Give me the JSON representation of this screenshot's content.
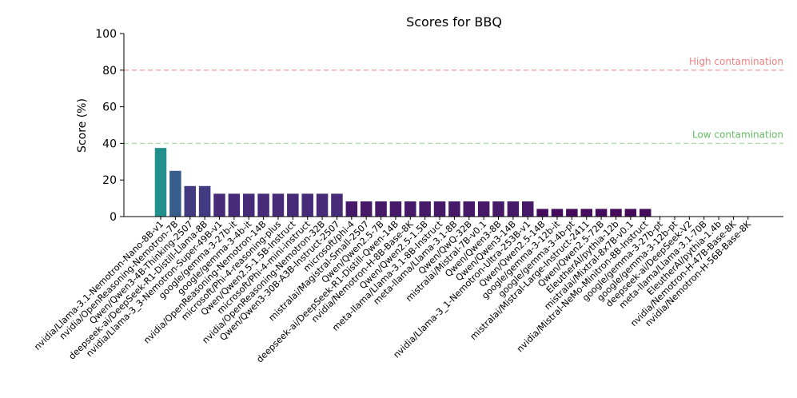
{
  "chart_data": {
    "type": "bar",
    "title": "Scores for BBQ",
    "xlabel": "",
    "ylabel": "Score (%)",
    "ylim": [
      0,
      100
    ],
    "yticks": [
      0,
      20,
      40,
      60,
      80,
      100
    ],
    "grid": false,
    "categories": [
      "nvidia/Llama-3.1-Nemotron-Nano-8B-v1",
      "nvidia/OpenReasoning-Nemotron-7B",
      "Qwen/Qwen3-4B-Thinking-2507",
      "deepseek-ai/DeepSeek-R1-Distill-Llama-8B",
      "nvidia/Llama-3_3-Nemotron-Super-49B-v1",
      "google/gemma-3-27b-it",
      "google/gemma-3-4b-it",
      "nvidia/OpenReasoning-Nemotron-14B",
      "microsoft/Phi-4-reasoning-plus",
      "Qwen/Qwen2.5-1.5B-Instruct",
      "microsoft/Phi-4-mini-instruct",
      "nvidia/OpenReasoning-Nemotron-32B",
      "Qwen/Qwen3-30B-A3B-Instruct-2507",
      "microsoft/phi-4",
      "mistralai/Magistral-Small-2507",
      "Qwen/Qwen2.5-7B",
      "deepseek-ai/DeepSeek-R1-Distill-Qwen-14B",
      "nvidia/Nemotron-H-8B-Base-8K",
      "Qwen/Qwen2.5-1.5B",
      "meta-llama/Llama-3.1-8B-Instruct",
      "meta-llama/Llama-3.1-8B",
      "Qwen/QwQ-32B",
      "mistralai/Mistral-7B-v0.1",
      "Qwen/Qwen3-8B",
      "Qwen/Qwen3-14B",
      "nvidia/Llama-3_1-Nemotron-Ultra-253B-v1",
      "Qwen/Qwen2.5-14B",
      "google/gemma-3-12b-it",
      "google/gemma-3-4b-pt",
      "mistralai/Mistral-Large-Instruct-2411",
      "Qwen/Qwen2.5-72B",
      "EleutherAI/pythia-12b",
      "mistralai/Mixtral-8x7B-v0.1",
      "nvidia/Mistral-NeMo-Minitron-8B-Instruct",
      "google/gemma-3-27b-pt",
      "google/gemma-3-12b-pt",
      "deepseek-ai/DeepSeek-V2",
      "meta-llama/Llama-3.1-70B",
      "EleutherAI/pythia-1.4b",
      "nvidia/Nemotron-H-47B-Base-8K",
      "nvidia/Nemotron-H-56B-Base-8K"
    ],
    "values": [
      37.5,
      25,
      16.7,
      16.7,
      12.5,
      12.5,
      12.5,
      12.5,
      12.5,
      12.5,
      12.5,
      12.5,
      12.5,
      8.3,
      8.3,
      8.3,
      8.3,
      8.3,
      8.3,
      8.3,
      8.3,
      8.3,
      8.3,
      8.3,
      8.3,
      8.3,
      4.2,
      4.2,
      4.2,
      4.2,
      4.2,
      4.2,
      4.2,
      4.2,
      0,
      0,
      0,
      0,
      0,
      0,
      0
    ],
    "thresholds": [
      {
        "label": "High contamination",
        "value": 80,
        "color": "#f4a3a3",
        "text_color": "#f08080"
      },
      {
        "label": "Low contamination",
        "value": 40,
        "color": "#a8dca8",
        "text_color": "#66bb66"
      }
    ],
    "colors": {
      "colormap": "viridis",
      "low": "#440154",
      "mid": "#482878",
      "high": "#2a788e"
    }
  }
}
